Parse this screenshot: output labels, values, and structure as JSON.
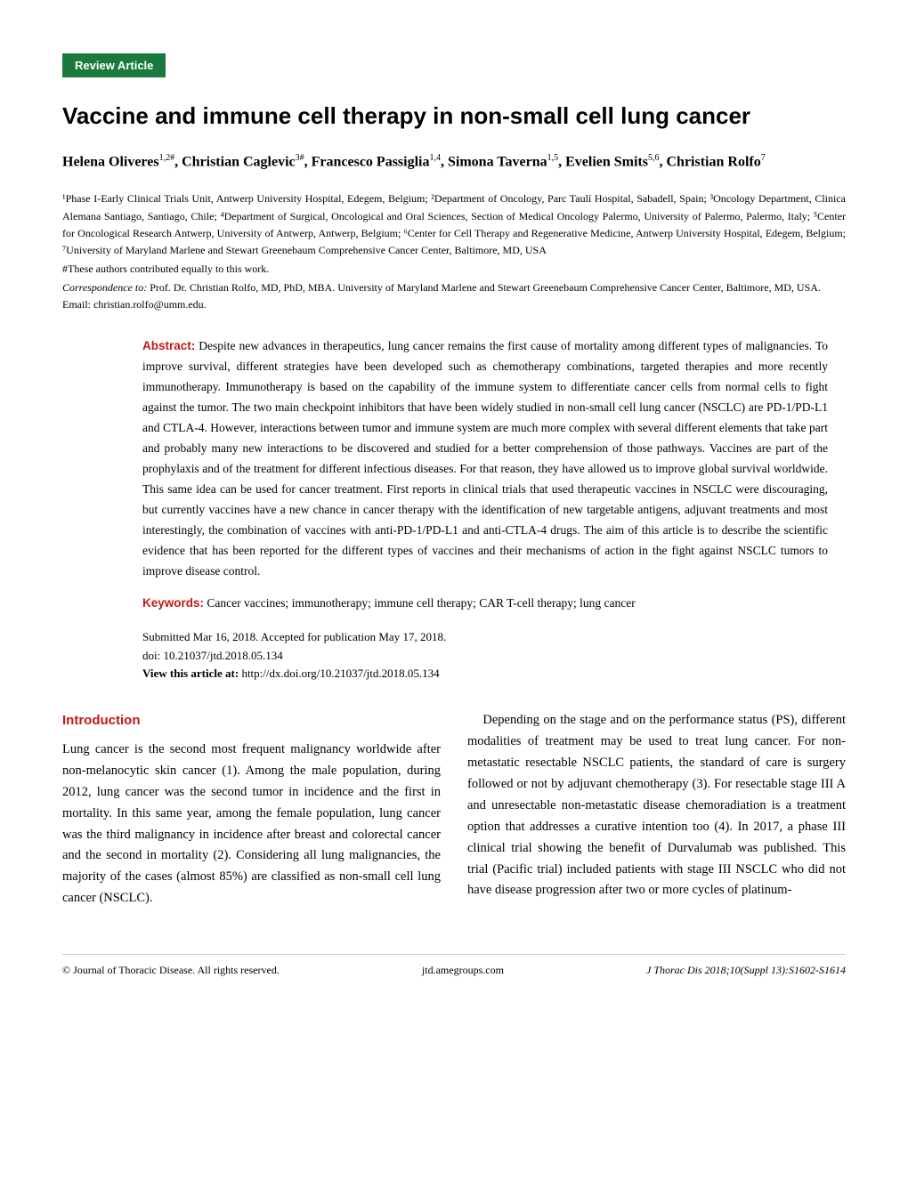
{
  "badge": {
    "label": "Review Article",
    "bg_color": "#1a7a3e",
    "text_color": "#ffffff"
  },
  "title": "Vaccine and immune cell therapy in non-small cell lung cancer",
  "authors_html": "Helena Oliveres<sup>1,2#</sup>, Christian Caglevic<sup>3#</sup>, Francesco Passiglia<sup>1,4</sup>, Simona Taverna<sup>1,5</sup>, Evelien Smits<sup>5,6</sup>, Christian Rolfo<sup>7</sup>",
  "affiliations": "¹Phase I-Early Clinical Trials Unit, Antwerp University Hospital, Edegem, Belgium; ²Department of Oncology, Parc Taulí Hospital, Sabadell, Spain; ³Oncology Department, Clinica Alemana Santiago, Santiago, Chile; ⁴Department of Surgical, Oncological and Oral Sciences, Section of Medical Oncology Palermo, University of Palermo, Palermo, Italy; ⁵Center for Oncological Research Antwerp, University of Antwerp, Antwerp, Belgium; ⁶Center for Cell Therapy and Regenerative Medicine, Antwerp University Hospital, Edegem, Belgium; ⁷University of Maryland Marlene and Stewart Greenebaum Comprehensive Cancer Center, Baltimore, MD, USA",
  "contrib_note": "#These authors contributed equally to this work.",
  "correspondence_label": "Correspondence to:",
  "correspondence_text": " Prof. Dr. Christian Rolfo, MD, PhD, MBA. University of Maryland Marlene and Stewart Greenebaum Comprehensive Cancer Center, Baltimore, MD, USA. Email: christian.rolfo@umm.edu.",
  "abstract": {
    "label": "Abstract:",
    "text": " Despite new advances in therapeutics, lung cancer remains the first cause of mortality among different types of malignancies. To improve survival, different strategies have been developed such as chemotherapy combinations, targeted therapies and more recently immunotherapy. Immunotherapy is based on the capability of the immune system to differentiate cancer cells from normal cells to fight against the tumor. The two main checkpoint inhibitors that have been widely studied in non-small cell lung cancer (NSCLC) are PD-1/PD-L1 and CTLA-4. However, interactions between tumor and immune system are much more complex with several different elements that take part and probably many new interactions to be discovered and studied for a better comprehension of those pathways. Vaccines are part of the prophylaxis and of the treatment for different infectious diseases. For that reason, they have allowed us to improve global survival worldwide. This same idea can be used for cancer treatment. First reports in clinical trials that used therapeutic vaccines in NSCLC were discouraging, but currently vaccines have a new chance in cancer therapy with the identification of new targetable antigens, adjuvant treatments and most interestingly, the combination of vaccines with anti-PD-1/PD-L1 and anti-CTLA-4 drugs. The aim of this article is to describe the scientific evidence that has been reported for the different types of vaccines and their mechanisms of action in the fight against NSCLC tumors to improve disease control."
  },
  "keywords": {
    "label": "Keywords:",
    "text": " Cancer vaccines; immunotherapy; immune cell therapy; CAR T-cell therapy; lung cancer"
  },
  "dates": {
    "submitted": "Submitted Mar 16, 2018. Accepted for publication May 17, 2018.",
    "doi": "doi: 10.21037/jtd.2018.05.134",
    "view_label": "View this article at: ",
    "view_url": "http://dx.doi.org/10.21037/jtd.2018.05.134"
  },
  "section_heading": "Introduction",
  "body": {
    "left": "Lung cancer is the second most frequent malignancy worldwide after non-melanocytic skin cancer (1). Among the male population, during 2012, lung cancer was the second tumor in incidence and the first in mortality. In this same year, among the female population, lung cancer was the third malignancy in incidence after breast and colorectal cancer and the second in mortality (2). Considering all lung malignancies, the majority of the cases (almost 85%) are classified as non-small cell lung cancer (NSCLC).",
    "right_indent": "    Depending on the stage and on the performance status (PS), different modalities of treatment may be used to treat lung cancer. For non-metastatic resectable NSCLC patients, the standard of care is surgery followed or not by adjuvant chemotherapy (3). For resectable stage III A and unresectable non-metastatic disease chemoradiation is a treatment option that addresses a curative intention too (4). In 2017, a phase III clinical trial showing the benefit of Durvalumab was published. This trial (Pacific trial) included patients with stage III NSCLC who did not have disease progression after two or more cycles of platinum-"
  },
  "footer": {
    "left": "© Journal of Thoracic Disease. All rights reserved.",
    "center": "jtd.amegroups.com",
    "right": "J Thorac Dis 2018;10(Suppl 13):S1602-S1614"
  },
  "colors": {
    "accent_red": "#c31818",
    "badge_green": "#1a7a3e",
    "text": "#000000",
    "bg": "#ffffff"
  },
  "typography": {
    "title_fontsize": 26,
    "authors_fontsize": 16,
    "affiliations_fontsize": 12,
    "abstract_fontsize": 13.5,
    "body_fontsize": 14.5,
    "footer_fontsize": 12
  }
}
